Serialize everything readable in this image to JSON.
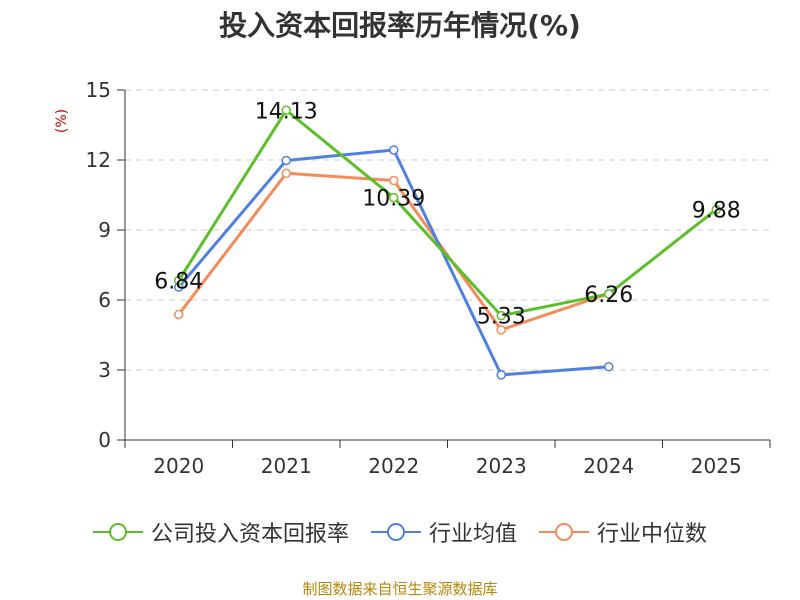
{
  "chart_data": {
    "type": "line",
    "title": "投入资本回报率历年情况(%)",
    "ylabel": "(%)",
    "categories": [
      "2020",
      "2021",
      "2022",
      "2023",
      "2024",
      "2025"
    ],
    "ylim": [
      0,
      15
    ],
    "yticks": [
      "0",
      "3",
      "6",
      "9",
      "12",
      "15"
    ],
    "grid": true,
    "legend_position": "bottom",
    "series": [
      {
        "name": "公司投入资本回报率",
        "color": "#5cbf2a",
        "values": [
          6.84,
          14.13,
          10.39,
          5.33,
          6.26,
          9.88
        ],
        "labels": [
          "6.84",
          "14.13",
          "10.39",
          "5.33",
          "6.26",
          "9.88"
        ]
      },
      {
        "name": "行业均值",
        "color": "#4f7fdf",
        "values": [
          6.55,
          11.98,
          12.43,
          2.79,
          3.14,
          null
        ]
      },
      {
        "name": "行业中位数",
        "color": "#f48c5a",
        "values": [
          5.38,
          11.43,
          11.12,
          4.72,
          6.27,
          null
        ]
      }
    ]
  },
  "footer": "制图数据来自恒生聚源数据库"
}
